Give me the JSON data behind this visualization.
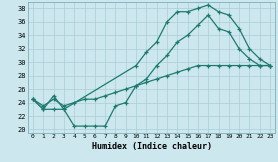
{
  "xlabel": "Humidex (Indice chaleur)",
  "background_color": "#cce8ee",
  "grid_color": "#aacdd6",
  "line_color": "#1e7a6e",
  "xlim": [
    -0.5,
    23.5
  ],
  "ylim": [
    19.5,
    39.0
  ],
  "xticks": [
    0,
    1,
    2,
    3,
    4,
    5,
    6,
    7,
    8,
    9,
    10,
    11,
    12,
    13,
    14,
    15,
    16,
    17,
    18,
    19,
    20,
    21,
    22,
    23
  ],
  "yticks": [
    20,
    22,
    24,
    26,
    28,
    30,
    32,
    34,
    36,
    38
  ],
  "curve_top_x": [
    0,
    1,
    2,
    3,
    10,
    11,
    12,
    13,
    14,
    15,
    16,
    17,
    18,
    19,
    20,
    21,
    22,
    23
  ],
  "curve_top_y": [
    24.5,
    23.0,
    25.0,
    23.0,
    29.5,
    31.5,
    33.0,
    36.0,
    37.5,
    37.5,
    38.0,
    38.5,
    37.5,
    37.0,
    35.0,
    32.0,
    30.5,
    29.5
  ],
  "curve_dip_x": [
    0,
    1,
    2,
    3,
    4,
    5,
    6,
    7,
    8,
    9,
    10,
    11,
    12,
    13,
    14,
    15,
    16,
    17,
    18,
    19,
    20,
    21,
    22,
    23
  ],
  "curve_dip_y": [
    24.5,
    23.0,
    23.0,
    23.0,
    20.5,
    20.5,
    20.5,
    20.5,
    23.5,
    24.0,
    26.5,
    27.5,
    29.5,
    31.0,
    33.0,
    34.0,
    35.5,
    37.0,
    35.0,
    34.5,
    32.0,
    30.5,
    29.5,
    29.5
  ],
  "curve_mid_x": [
    0,
    1,
    2,
    3,
    4,
    5,
    6,
    7,
    8,
    9,
    10,
    11,
    12,
    13,
    14,
    15,
    16,
    17,
    18,
    19,
    20,
    21,
    22,
    23
  ],
  "curve_mid_y": [
    24.5,
    23.5,
    24.5,
    23.5,
    24.0,
    24.5,
    24.5,
    25.0,
    25.5,
    26.0,
    26.5,
    27.0,
    27.5,
    28.0,
    28.5,
    29.0,
    29.5,
    29.5,
    29.5,
    29.5,
    29.5,
    29.5,
    29.5,
    29.5
  ]
}
